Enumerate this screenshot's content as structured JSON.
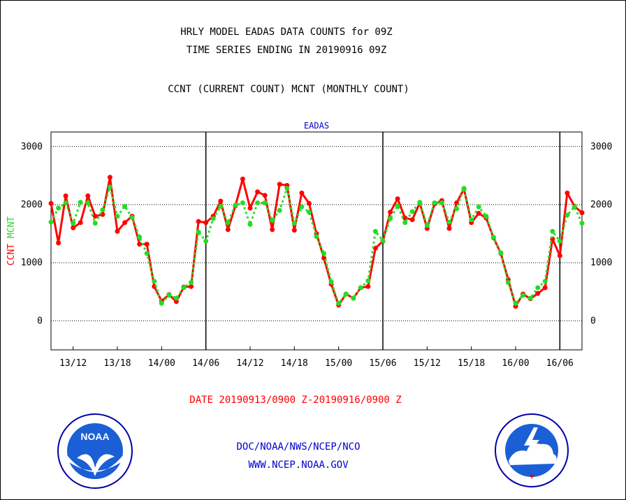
{
  "header": {
    "title_line1": "HRLY MODEL EADAS DATA COUNTS for 09Z",
    "title_line2": "TIME SERIES ENDING IN 20190916 09Z",
    "legend_text": "CCNT (CURRENT COUNT) MCNT (MONTHLY COUNT)"
  },
  "footer": {
    "date_range": "DATE 20190913/0900 Z-20190916/0900 Z",
    "org": "DOC/NOAA/NWS/NCEP/NCO",
    "url": "WWW.NCEP.NOAA.GOV"
  },
  "logos": {
    "left_text": "NOAA",
    "left_icon": "noaa-logo",
    "right_icon": "nws-logo"
  },
  "colors": {
    "ccnt": "#ff0000",
    "mcnt": "#22dd22",
    "text_blue": "#0000cc",
    "text_red": "#ff0000"
  },
  "chart_data": {
    "type": "line",
    "title": "EADAS",
    "ylabel_left": [
      "CCNT",
      "MCNT"
    ],
    "yticks": [
      0,
      1000,
      2000,
      3000
    ],
    "ylim": [
      -500,
      3250
    ],
    "x_tick_labels": [
      "13/12",
      "13/18",
      "14/00",
      "14/06",
      "14/12",
      "14/18",
      "15/00",
      "15/06",
      "15/12",
      "15/18",
      "16/00",
      "16/06"
    ],
    "x_tick_hours": [
      3,
      9,
      15,
      21,
      27,
      33,
      39,
      45,
      51,
      57,
      63,
      69
    ],
    "day_boundaries_hours": [
      21,
      45,
      69
    ],
    "x_hours_range": [
      0,
      72
    ],
    "grid": "horizontal-dotted",
    "series": [
      {
        "name": "CCNT",
        "style": "solid",
        "values": [
          2020,
          1340,
          2150,
          1600,
          1690,
          2150,
          1800,
          1830,
          2470,
          1540,
          1690,
          1800,
          1320,
          1320,
          590,
          340,
          450,
          330,
          580,
          590,
          1710,
          1690,
          1800,
          2060,
          1570,
          1980,
          2440,
          1940,
          2220,
          2160,
          1570,
          2350,
          2330,
          1560,
          2200,
          2020,
          1500,
          1080,
          630,
          270,
          460,
          390,
          570,
          590,
          1250,
          1370,
          1870,
          2100,
          1770,
          1740,
          2030,
          1590,
          2010,
          2070,
          1590,
          2030,
          2270,
          1690,
          1850,
          1770,
          1430,
          1160,
          710,
          250,
          460,
          380,
          470,
          570,
          1410,
          1120,
          2200,
          1970,
          1860
        ]
      },
      {
        "name": "MCNT",
        "style": "dotted",
        "values": [
          1700,
          1940,
          2030,
          1680,
          2040,
          2030,
          1680,
          1910,
          2300,
          1800,
          1970,
          1780,
          1440,
          1160,
          680,
          300,
          440,
          390,
          570,
          660,
          1530,
          1370,
          1760,
          1970,
          1690,
          1990,
          2030,
          1660,
          2030,
          2030,
          1730,
          1900,
          2280,
          1680,
          1960,
          1870,
          1450,
          1160,
          670,
          300,
          460,
          390,
          570,
          690,
          1540,
          1380,
          1760,
          1980,
          1690,
          1880,
          2040,
          1640,
          2030,
          2030,
          1700,
          1930,
          2280,
          1740,
          1960,
          1800,
          1440,
          1170,
          660,
          300,
          440,
          390,
          570,
          680,
          1540,
          1370,
          1820,
          1960,
          1680
        ]
      }
    ]
  }
}
